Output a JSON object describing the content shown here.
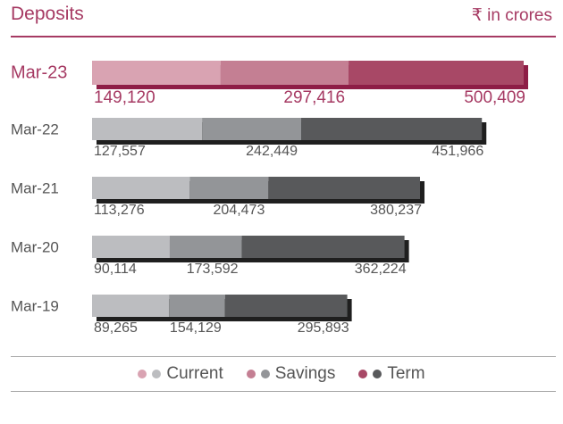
{
  "title": "Deposits",
  "unit": "₹ in crores",
  "chart_data": {
    "type": "bar",
    "stacked": true,
    "orientation": "horizontal",
    "categories": [
      "Mar-23",
      "Mar-22",
      "Mar-21",
      "Mar-20",
      "Mar-19"
    ],
    "series": [
      {
        "name": "Current",
        "values": [
          149120,
          127557,
          113276,
          90114,
          89265
        ]
      },
      {
        "name": "Savings",
        "values": [
          297416,
          242449,
          204473,
          173592,
          154129
        ]
      },
      {
        "name": "Term",
        "values": [
          500409,
          451966,
          380237,
          362224,
          295893
        ]
      }
    ],
    "labels": [
      [
        "149,120",
        "297,416",
        "500,409"
      ],
      [
        "127,557",
        "242,449",
        "451,966"
      ],
      [
        "113,276",
        "204,473",
        "380,237"
      ],
      [
        "90,114",
        "173,592",
        "362,224"
      ],
      [
        "89,265",
        "154,129",
        "295,893"
      ]
    ],
    "highlight_category": "Mar-23",
    "colors": {
      "highlight": [
        "#d9a3b2",
        "#c47f93",
        "#a84866"
      ],
      "highlight_shadow": "#8e1d46",
      "normal": [
        "#bcbdc0",
        "#939598",
        "#58595b"
      ],
      "normal_shadow": "#1f1f1f",
      "highlight_text": "#a63a63",
      "normal_text": "#555555"
    },
    "legend": [
      {
        "label": "Current",
        "colors": [
          "#d9a3b2",
          "#bcbdc0"
        ]
      },
      {
        "label": "Savings",
        "colors": [
          "#c47f93",
          "#939598"
        ]
      },
      {
        "label": "Term",
        "colors": [
          "#a84866",
          "#58595b"
        ]
      }
    ],
    "legend_position": "bottom"
  }
}
